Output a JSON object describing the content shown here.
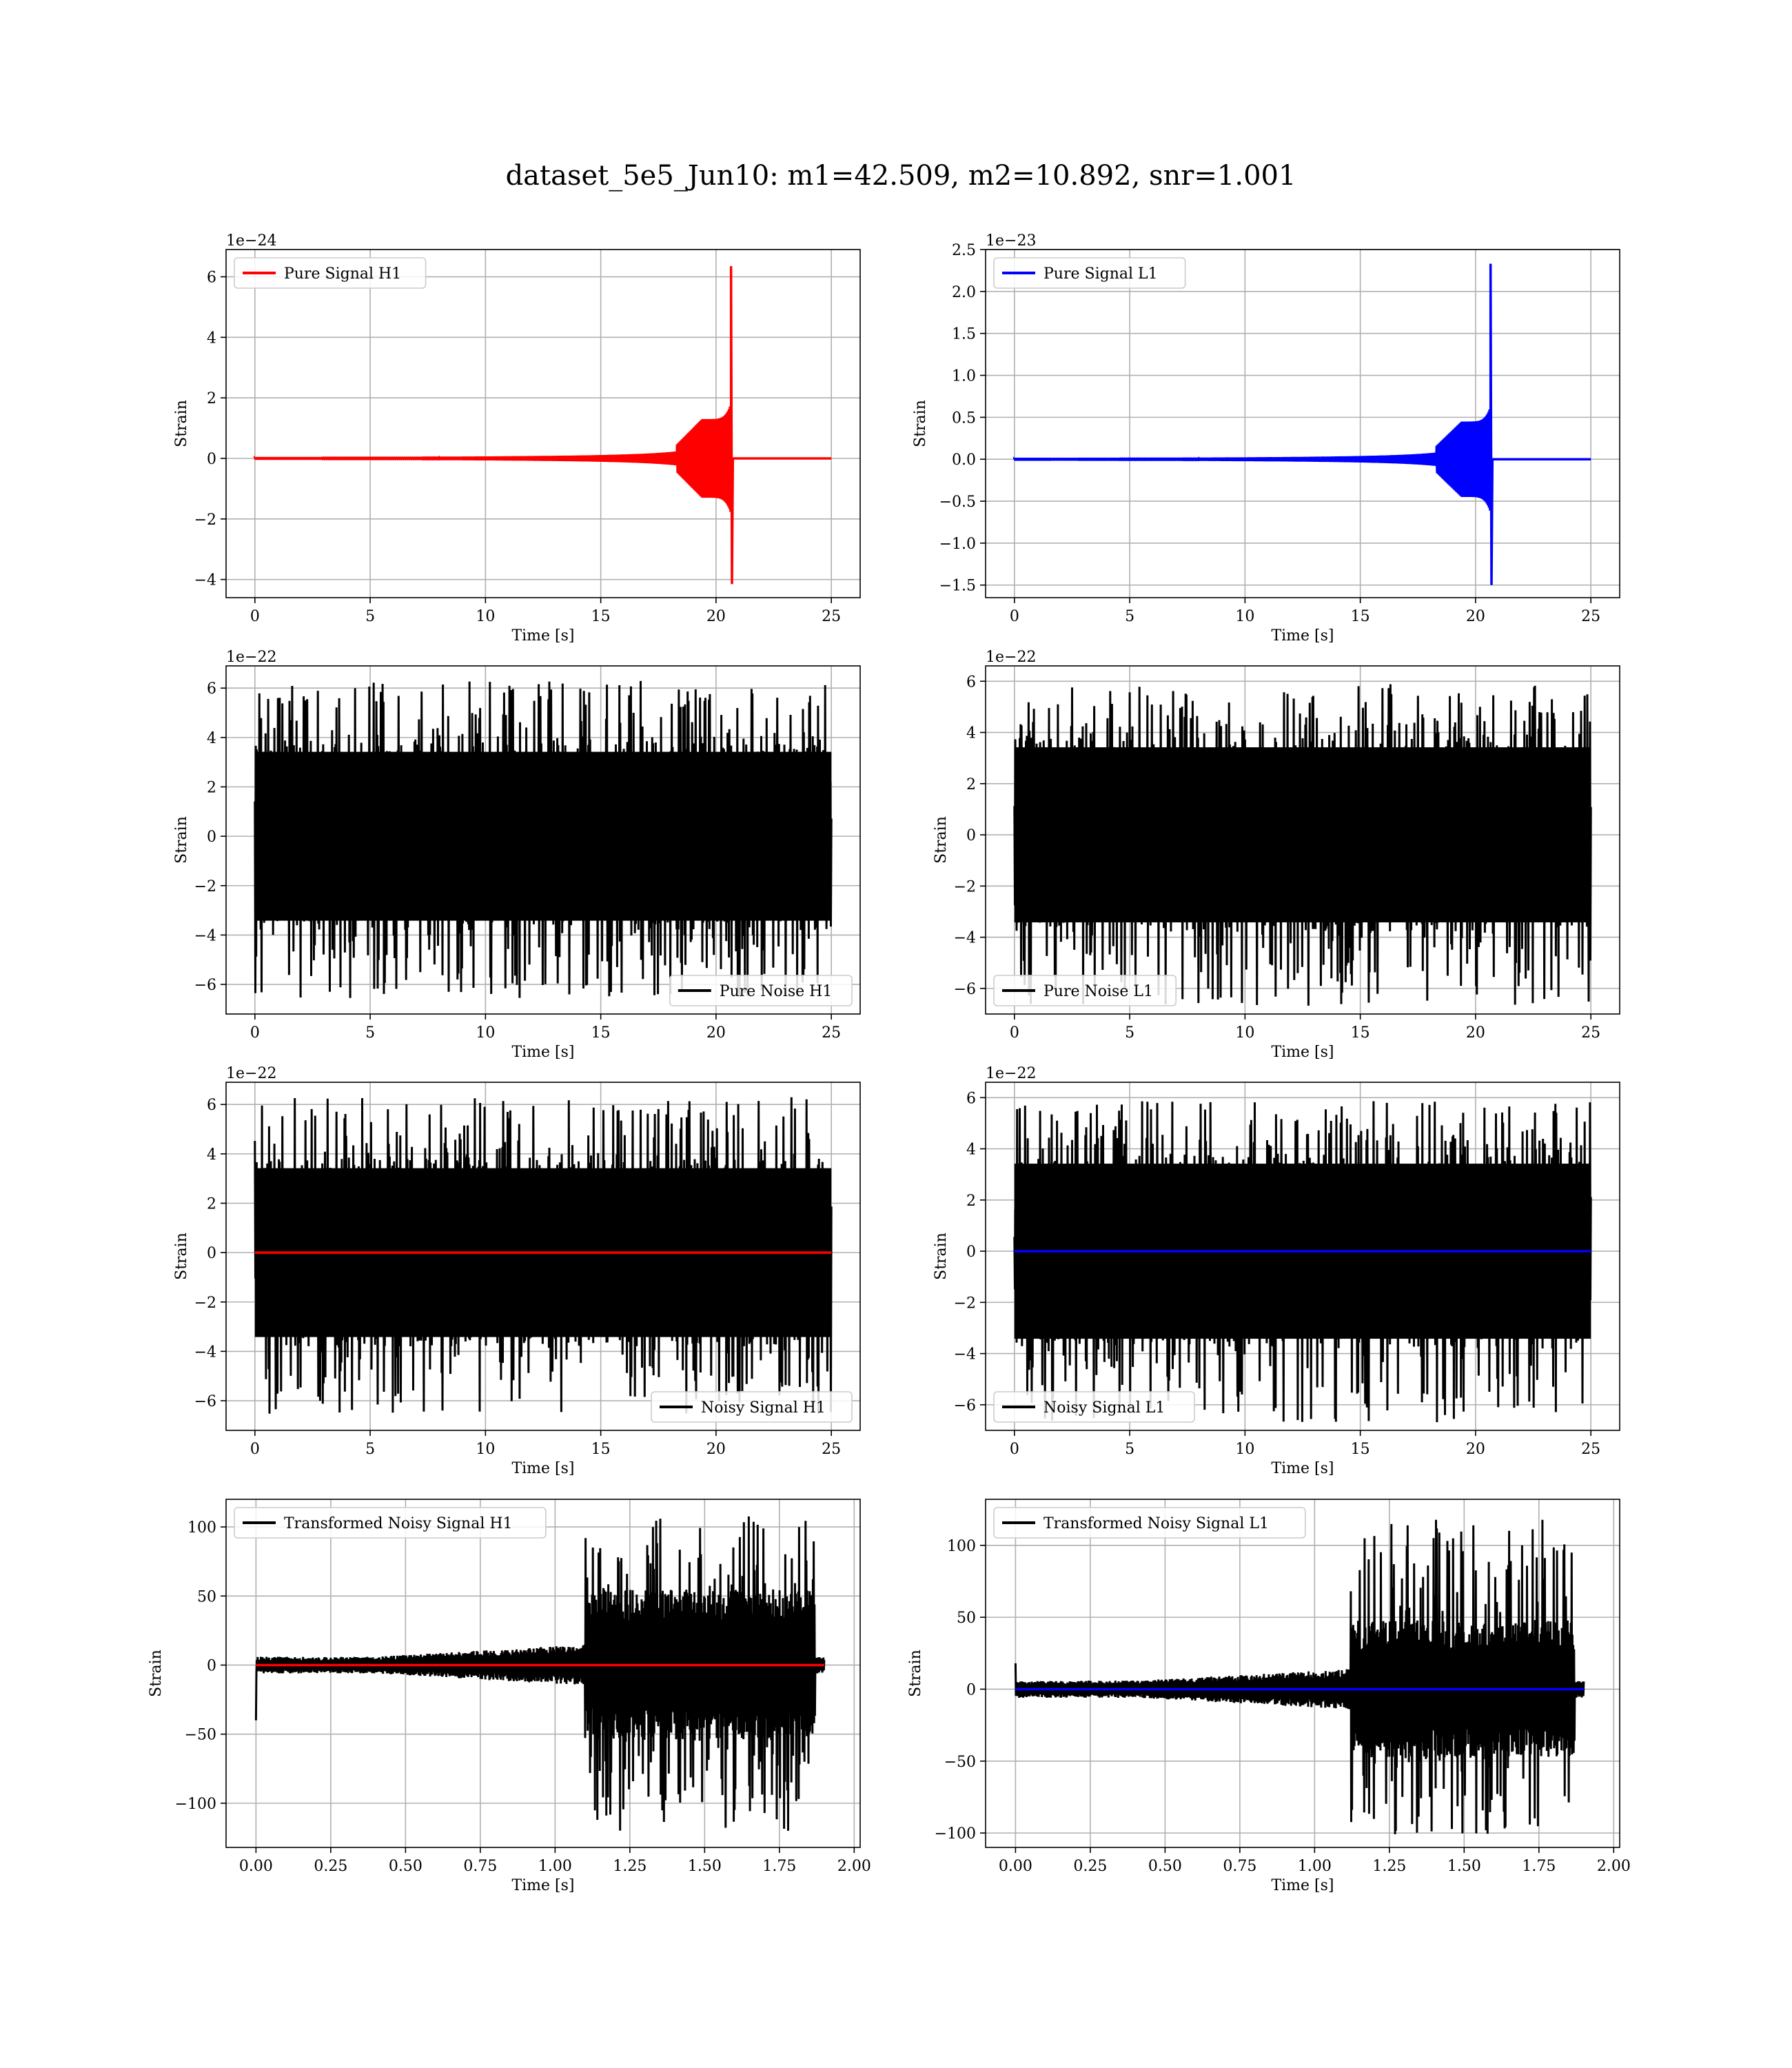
{
  "figure": {
    "title": "dataset_5e5_Jun10: m1=42.509, m2=10.892, snr=1.001"
  },
  "colors": {
    "h1_signal": "#ff0000",
    "l1_signal": "#0000ff",
    "noise": "#000000",
    "grid": "#b0b0b0"
  },
  "chart_data": [
    {
      "id": "pure-signal-h1",
      "type": "line",
      "xlabel": "Time [s]",
      "ylabel": "Strain",
      "exponent_label": "1e−24",
      "xlim": [
        -1.25,
        26.25
      ],
      "ylim": [
        -4.6,
        6.9
      ],
      "xticks": [
        0,
        5,
        10,
        15,
        20,
        25
      ],
      "xtick_labels": [
        "0",
        "5",
        "10",
        "15",
        "20",
        "25"
      ],
      "yticks": [
        -4,
        -2,
        0,
        2,
        4,
        6
      ],
      "ytick_labels": [
        "−4",
        "−2",
        "0",
        "2",
        "4",
        "6"
      ],
      "legend": {
        "loc": "upper-left"
      },
      "series": [
        {
          "name": "Pure Signal H1",
          "color": "#ff0000",
          "kind": "chirp",
          "x_range": [
            0,
            25
          ],
          "merger_time": 20.65,
          "peak_pos": 6.35,
          "peak_neg": -4.15,
          "plateau": 1.3
        }
      ],
      "grid": true
    },
    {
      "id": "pure-signal-l1",
      "type": "line",
      "xlabel": "Time [s]",
      "ylabel": "Strain",
      "exponent_label": "1e−23",
      "xlim": [
        -1.25,
        26.25
      ],
      "ylim": [
        -1.65,
        2.5
      ],
      "xticks": [
        0,
        5,
        10,
        15,
        20,
        25
      ],
      "xtick_labels": [
        "0",
        "5",
        "10",
        "15",
        "20",
        "25"
      ],
      "yticks": [
        -1.5,
        -1.0,
        -0.5,
        0.0,
        0.5,
        1.0,
        1.5,
        2.0,
        2.5
      ],
      "ytick_labels": [
        "−1.5",
        "−1.0",
        "−0.5",
        "0.0",
        "0.5",
        "1.0",
        "1.5",
        "2.0",
        "2.5"
      ],
      "legend": {
        "loc": "upper-left"
      },
      "series": [
        {
          "name": "Pure Signal L1",
          "color": "#0000ff",
          "kind": "chirp",
          "x_range": [
            0,
            25
          ],
          "merger_time": 20.65,
          "peak_pos": 2.33,
          "peak_neg": -1.5,
          "plateau": 0.45
        }
      ],
      "grid": true
    },
    {
      "id": "pure-noise-h1",
      "type": "line",
      "xlabel": "Time [s]",
      "ylabel": "Strain",
      "exponent_label": "1e−22",
      "xlim": [
        -1.25,
        26.25
      ],
      "ylim": [
        -7.2,
        6.9
      ],
      "xticks": [
        0,
        5,
        10,
        15,
        20,
        25
      ],
      "xtick_labels": [
        "0",
        "5",
        "10",
        "15",
        "20",
        "25"
      ],
      "yticks": [
        -6,
        -4,
        -2,
        0,
        2,
        4,
        6
      ],
      "ytick_labels": [
        "−6",
        "−4",
        "−2",
        "0",
        "2",
        "4",
        "6"
      ],
      "legend": {
        "loc": "lower-right"
      },
      "series": [
        {
          "name": "Pure Noise H1",
          "color": "#000000",
          "kind": "noise",
          "x_range": [
            0,
            25
          ],
          "band": 3.8,
          "max": 6.3,
          "min": -6.6
        }
      ],
      "grid": true
    },
    {
      "id": "pure-noise-l1",
      "type": "line",
      "xlabel": "Time [s]",
      "ylabel": "Strain",
      "exponent_label": "1e−22",
      "xlim": [
        -1.25,
        26.25
      ],
      "ylim": [
        -7.0,
        6.6
      ],
      "xticks": [
        0,
        5,
        10,
        15,
        20,
        25
      ],
      "xtick_labels": [
        "0",
        "5",
        "10",
        "15",
        "20",
        "25"
      ],
      "yticks": [
        -6,
        -4,
        -2,
        0,
        2,
        4,
        6
      ],
      "ytick_labels": [
        "−6",
        "−4",
        "−2",
        "0",
        "2",
        "4",
        "6"
      ],
      "legend": {
        "loc": "lower-left"
      },
      "series": [
        {
          "name": "Pure Noise L1",
          "color": "#000000",
          "kind": "noise",
          "x_range": [
            0,
            25
          ],
          "band": 3.8,
          "max": 5.9,
          "min": -6.7
        }
      ],
      "grid": true
    },
    {
      "id": "noisy-signal-h1",
      "type": "line",
      "xlabel": "Time [s]",
      "ylabel": "Strain",
      "exponent_label": "1e−22",
      "xlim": [
        -1.25,
        26.25
      ],
      "ylim": [
        -7.2,
        6.9
      ],
      "xticks": [
        0,
        5,
        10,
        15,
        20,
        25
      ],
      "xtick_labels": [
        "0",
        "5",
        "10",
        "15",
        "20",
        "25"
      ],
      "yticks": [
        -6,
        -4,
        -2,
        0,
        2,
        4,
        6
      ],
      "ytick_labels": [
        "−6",
        "−4",
        "−2",
        "0",
        "2",
        "4",
        "6"
      ],
      "legend": {
        "loc": "lower-right"
      },
      "series": [
        {
          "name": "Noisy Signal H1",
          "color": "#000000",
          "kind": "noise",
          "x_range": [
            0,
            25
          ],
          "band": 3.8,
          "max": 6.3,
          "min": -6.6
        },
        {
          "name": "",
          "color": "#ff0000",
          "kind": "flat",
          "x_range": [
            0,
            25
          ],
          "value": 0
        }
      ],
      "grid": true
    },
    {
      "id": "noisy-signal-l1",
      "type": "line",
      "xlabel": "Time [s]",
      "ylabel": "Strain",
      "exponent_label": "1e−22",
      "xlim": [
        -1.25,
        26.25
      ],
      "ylim": [
        -7.0,
        6.6
      ],
      "xticks": [
        0,
        5,
        10,
        15,
        20,
        25
      ],
      "xtick_labels": [
        "0",
        "5",
        "10",
        "15",
        "20",
        "25"
      ],
      "yticks": [
        -6,
        -4,
        -2,
        0,
        2,
        4,
        6
      ],
      "ytick_labels": [
        "−6",
        "−4",
        "−2",
        "0",
        "2",
        "4",
        "6"
      ],
      "legend": {
        "loc": "lower-left"
      },
      "series": [
        {
          "name": "Noisy Signal L1",
          "color": "#000000",
          "kind": "noise",
          "x_range": [
            0,
            25
          ],
          "band": 3.8,
          "max": 5.9,
          "min": -6.7
        },
        {
          "name": "",
          "color": "#0000ff",
          "kind": "flat",
          "x_range": [
            0,
            25
          ],
          "value": 0
        }
      ],
      "grid": true
    },
    {
      "id": "transformed-noisy-signal-h1",
      "type": "line",
      "xlabel": "Time [s]",
      "ylabel": "Strain",
      "exponent_label": "",
      "xlim": [
        -0.1,
        2.02
      ],
      "ylim": [
        -132,
        120
      ],
      "xticks": [
        0.0,
        0.25,
        0.5,
        0.75,
        1.0,
        1.25,
        1.5,
        1.75,
        2.0
      ],
      "xtick_labels": [
        "0.00",
        "0.25",
        "0.50",
        "0.75",
        "1.00",
        "1.25",
        "1.50",
        "1.75",
        "2.00"
      ],
      "yticks": [
        -100,
        -50,
        0,
        50,
        100
      ],
      "ytick_labels": [
        "−100",
        "−50",
        "0",
        "50",
        "100"
      ],
      "legend": {
        "loc": "upper-left"
      },
      "series": [
        {
          "name": "Transformed Noisy Signal H1",
          "color": "#000000",
          "kind": "burst",
          "x_range": [
            0,
            1.9
          ],
          "pre_band": 6,
          "mid_band": 15,
          "burst_start": 1.1,
          "burst_end": 1.87,
          "burst_band": 55,
          "max": 108,
          "min": -120,
          "spike_start": -40
        },
        {
          "name": "",
          "color": "#ff0000",
          "kind": "flat",
          "x_range": [
            0,
            1.9
          ],
          "value": 0
        }
      ],
      "grid": true
    },
    {
      "id": "transformed-noisy-signal-l1",
      "type": "line",
      "xlabel": "Time [s]",
      "ylabel": "Strain",
      "exponent_label": "",
      "xlim": [
        -0.1,
        2.02
      ],
      "ylim": [
        -110,
        132
      ],
      "xticks": [
        0.0,
        0.25,
        0.5,
        0.75,
        1.0,
        1.25,
        1.5,
        1.75,
        2.0
      ],
      "xtick_labels": [
        "0.00",
        "0.25",
        "0.50",
        "0.75",
        "1.00",
        "1.25",
        "1.50",
        "1.75",
        "2.00"
      ],
      "yticks": [
        -100,
        -50,
        0,
        50,
        100
      ],
      "ytick_labels": [
        "−100",
        "−50",
        "0",
        "50",
        "100"
      ],
      "legend": {
        "loc": "upper-left"
      },
      "series": [
        {
          "name": "Transformed Noisy Signal L1",
          "color": "#000000",
          "kind": "burst",
          "x_range": [
            0,
            1.9
          ],
          "pre_band": 6,
          "mid_band": 14,
          "burst_start": 1.12,
          "burst_end": 1.87,
          "burst_band": 48,
          "max": 120,
          "min": -102,
          "spike_start": 18
        },
        {
          "name": "",
          "color": "#0000ff",
          "kind": "flat",
          "x_range": [
            0,
            1.9
          ],
          "value": 0
        }
      ],
      "grid": true
    }
  ]
}
